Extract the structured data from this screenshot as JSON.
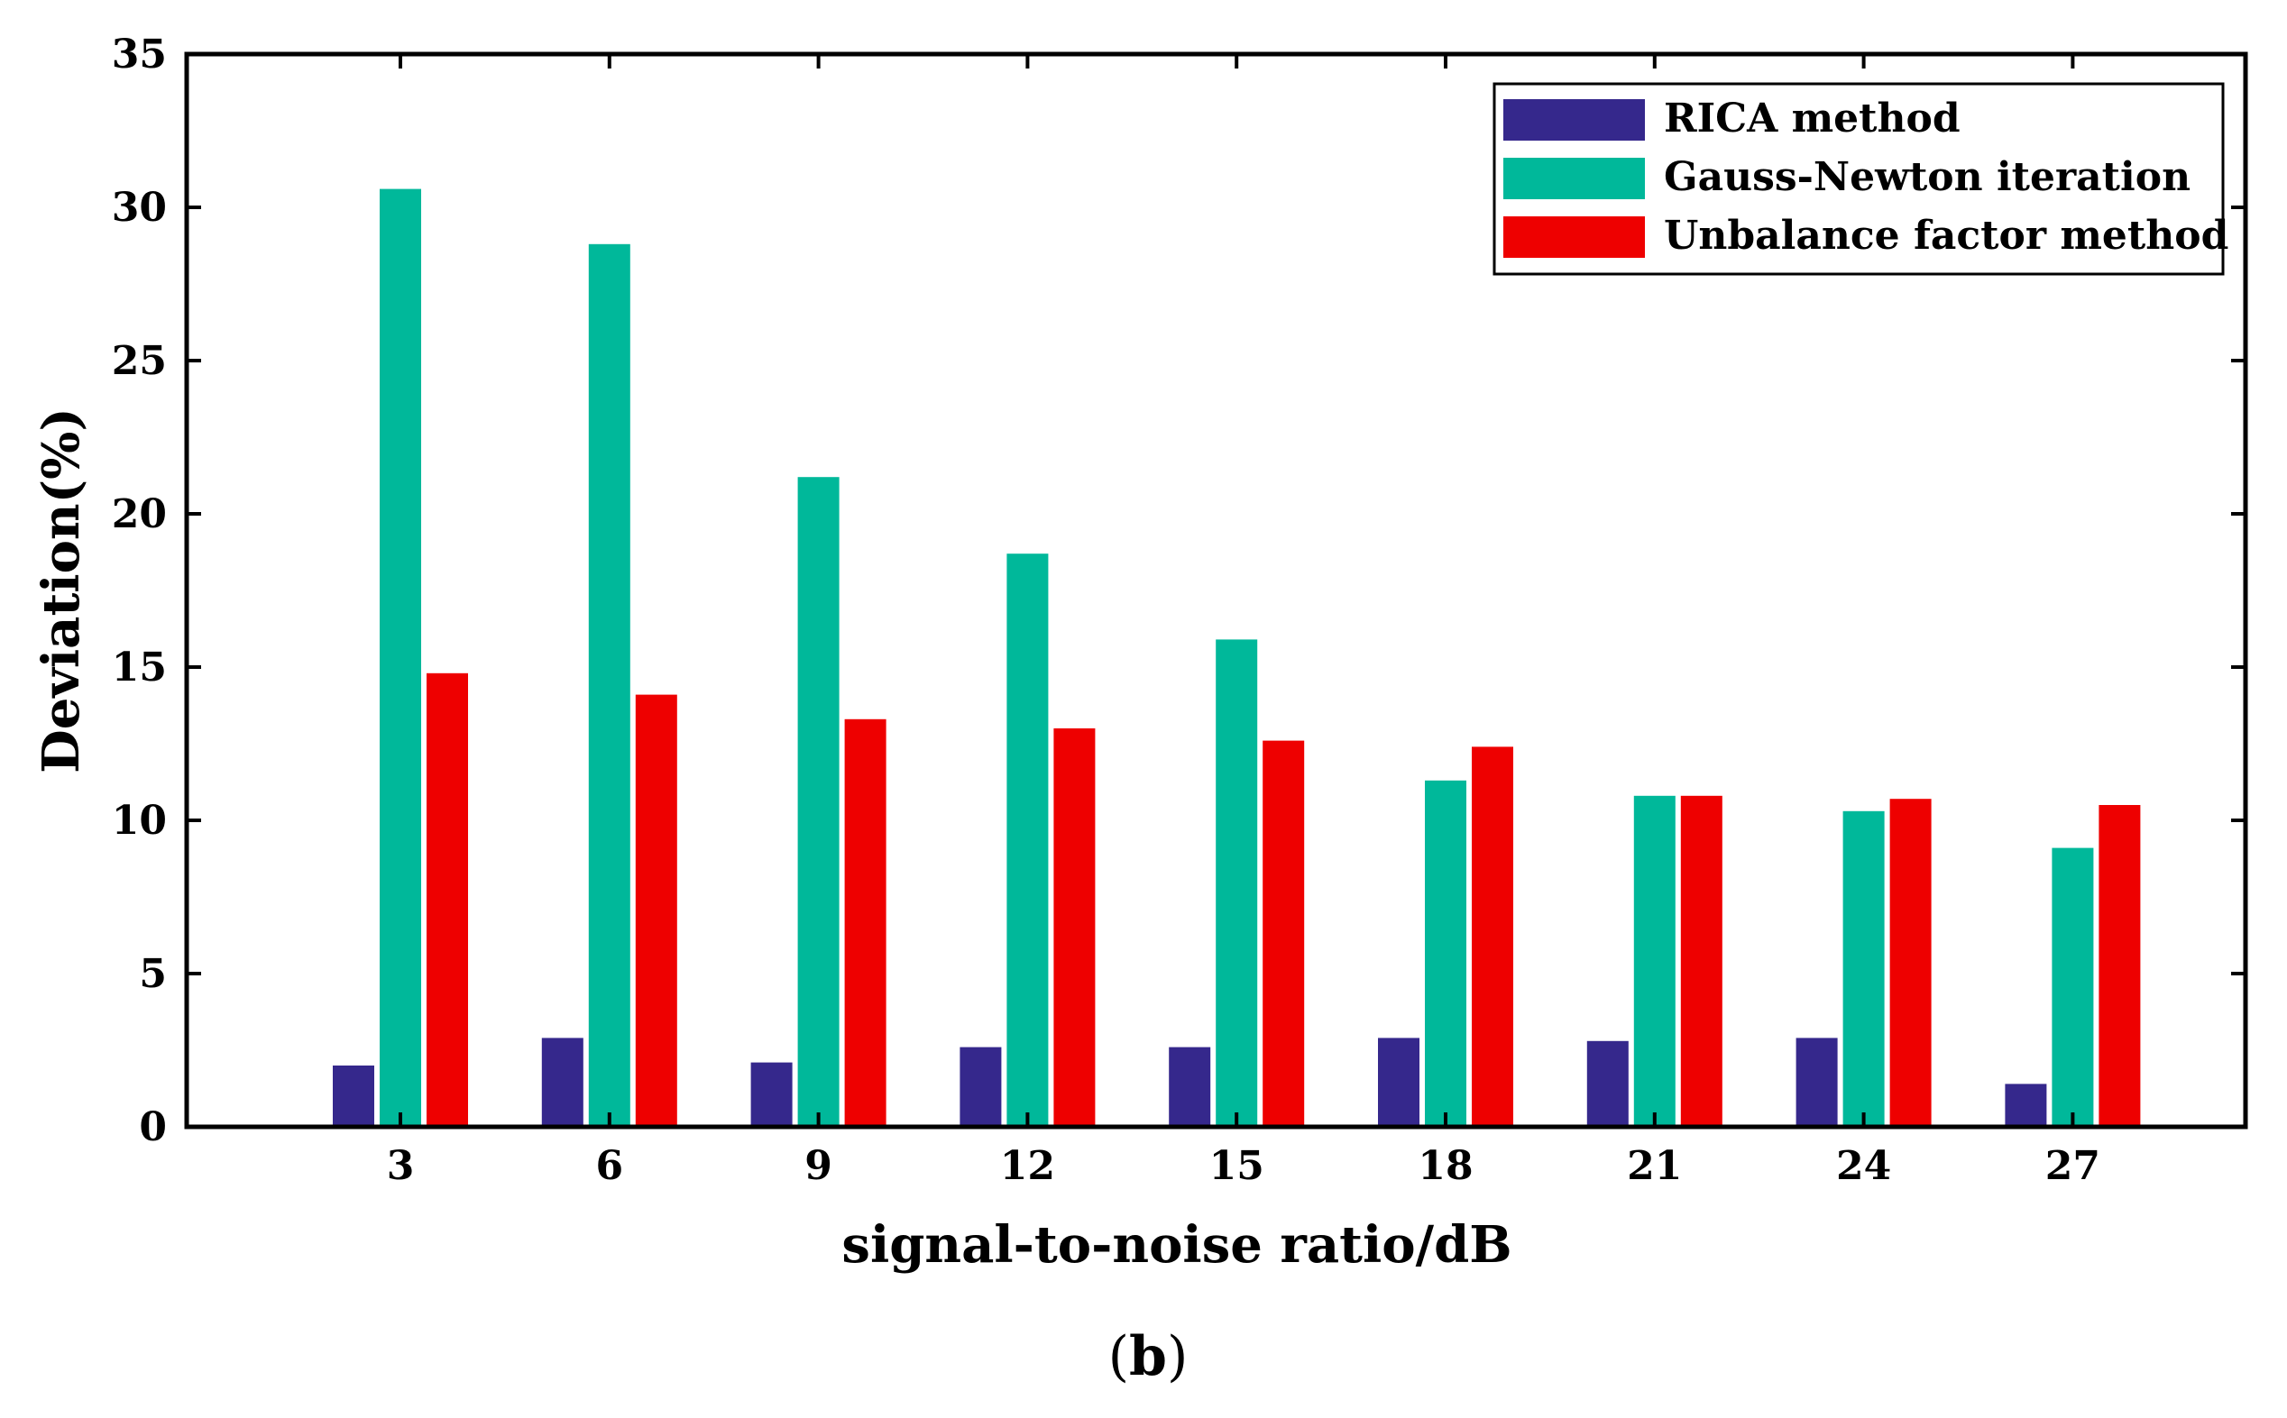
{
  "chart_data": {
    "type": "bar",
    "categories": [
      "3",
      "6",
      "9",
      "12",
      "15",
      "18",
      "21",
      "24",
      "27"
    ],
    "series": [
      {
        "name": "RICA method",
        "color": "#35288c",
        "values": [
          2.0,
          2.9,
          2.1,
          2.6,
          2.6,
          2.9,
          2.8,
          2.9,
          1.4
        ]
      },
      {
        "name": "Gauss-Newton iteration",
        "color": "#00b89a",
        "values": [
          30.6,
          28.8,
          21.2,
          18.7,
          15.9,
          11.3,
          10.8,
          10.3,
          9.1
        ]
      },
      {
        "name": "Unbalance factor method",
        "color": "#ee0000",
        "values": [
          14.8,
          14.1,
          13.3,
          13.0,
          12.6,
          12.4,
          10.8,
          10.7,
          10.5
        ]
      }
    ],
    "xlabel": "signal-to-noise ratio/dB",
    "ylabel": "Deviation(%)",
    "ylim": [
      0,
      35
    ],
    "yticks": [
      0,
      5,
      10,
      15,
      20,
      25,
      30,
      35
    ],
    "grid": false,
    "legend_position": "top-right"
  },
  "panel_label": {
    "open": "(",
    "letter": "b",
    "close": ")"
  }
}
